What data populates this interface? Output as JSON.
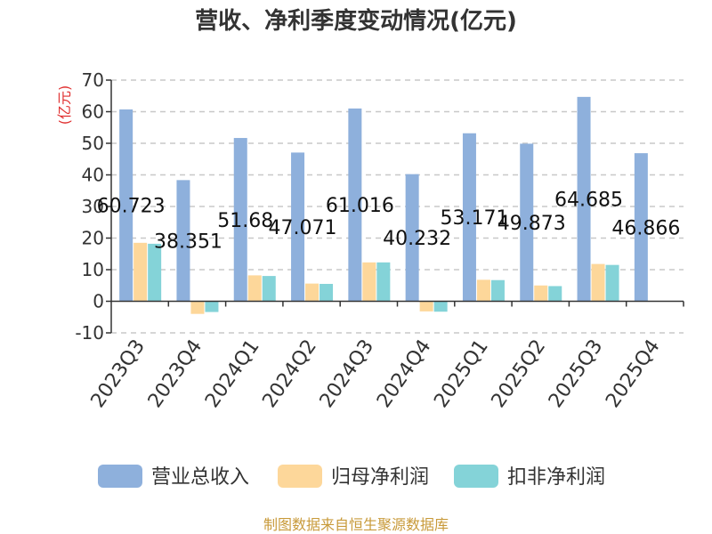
{
  "title": "营收、净利季度变动情况(亿元)",
  "unit": "(亿元)",
  "source": "制图数据来自恒生聚源数据库",
  "colors": {
    "revenue": "#8eb0dc",
    "net_profit": "#fdd79a",
    "deducted_net_profit": "#84d3d8",
    "grid": "#c8c8c8",
    "axis": "#333333"
  },
  "chart_data": {
    "type": "bar",
    "title": "营收、净利季度变动情况(亿元)",
    "ylabel": "(亿元)",
    "ylim": [
      -10,
      70
    ],
    "yticks": [
      70,
      60,
      50,
      40,
      30,
      20,
      10,
      0,
      -10
    ],
    "grid": true,
    "legend_position": "bottom",
    "categories": [
      "2023Q3",
      "2023Q4",
      "2024Q1",
      "2024Q2",
      "2024Q3",
      "2024Q4",
      "2025Q1",
      "2025Q2",
      "2025Q3",
      "2025Q4"
    ],
    "series": [
      {
        "name": "营业总收入",
        "color": "#8eb0dc",
        "values": [
          60.723,
          38.351,
          51.68,
          47.071,
          61.016,
          40.232,
          53.171,
          49.873,
          64.685,
          46.866
        ],
        "labels": [
          "60.723",
          "38.351",
          "51.68",
          "47.071",
          "61.016",
          "40.232",
          "53.171",
          "49.873",
          "64.685",
          "46.866"
        ]
      },
      {
        "name": "归母净利润",
        "color": "#fdd79a",
        "values": [
          18.5,
          -4.0,
          8.2,
          5.6,
          12.3,
          -3.2,
          6.8,
          5.0,
          11.8,
          0.0
        ]
      },
      {
        "name": "扣非净利润",
        "color": "#84d3d8",
        "values": [
          18.2,
          -3.4,
          8.0,
          5.5,
          12.3,
          -3.3,
          6.7,
          4.8,
          11.5,
          0.0
        ]
      }
    ]
  }
}
